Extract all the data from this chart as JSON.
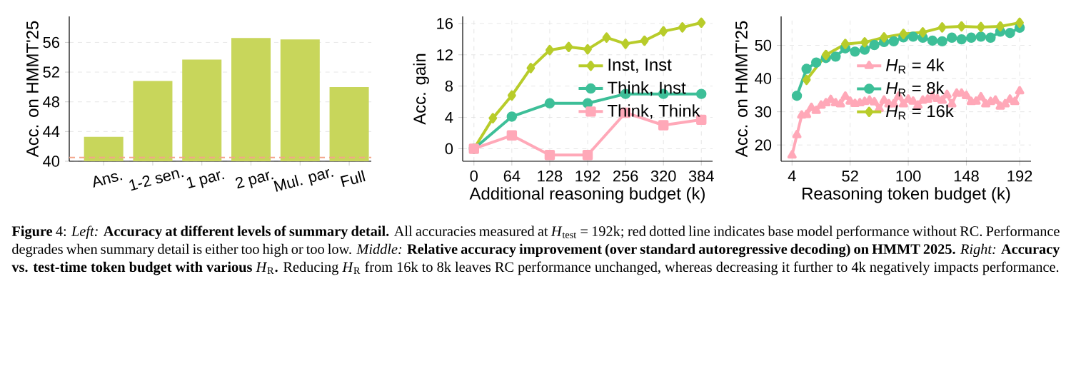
{
  "chart_data": [
    {
      "type": "bar",
      "ylabel": "Acc. on HMMT'25",
      "categories": [
        "Ans.",
        "1-2 sen.",
        "1 par.",
        "2 par.",
        "Mul. par.",
        "Full"
      ],
      "values": [
        43.3,
        50.8,
        53.7,
        56.6,
        56.4,
        50.0
      ],
      "color": "#c8d65b",
      "ylim": [
        40,
        59.5
      ],
      "yticks": [
        40,
        44,
        48,
        52,
        56
      ],
      "grid": "y",
      "ref_lines": [
        {
          "axis": "y",
          "value": 40.5,
          "color": "#f4a58a",
          "line_style": "dashed"
        }
      ],
      "annotations": [
        "**Figure** 4: *Left:* **Accuracy at different levels of summary detail.** All accuracies measured at *H*$_{test}$ = 192k; red dotted line indicates base model performance without RC. Performance degrades when summary detail is either too high or too low. *Middle:* **Relative accuracy improvement (over standard autoregressive decoding) on HMMT 2025.** *Right:* **Accuracy vs. test-time token budget with various** *H*$_{R}$**.** Reducing *H*$_{R}$ from 16k to 8k leaves RC performance unchanged, whereas decreasing it further to 4k negatively impacts performance."
      ]
    },
    {
      "type": "line",
      "xlabel": "Additional reasoning budget (k)",
      "ylabel": "Acc. gain",
      "xlim": [
        -19,
        403
      ],
      "xticks": [
        0,
        64,
        128,
        192,
        256,
        320,
        384
      ],
      "ylim": [
        -1.6,
        16.9
      ],
      "yticks": [
        0,
        4,
        8,
        12,
        16
      ],
      "grid": true,
      "legend": "center right",
      "series": [
        {
          "name": "Inst, Inst",
          "color": "#b8cc2a",
          "marker": "diamond",
          "x": [
            0,
            32,
            64,
            96,
            128,
            160,
            192,
            224,
            256,
            288,
            320,
            352,
            384
          ],
          "values": [
            0,
            3.9,
            6.8,
            10.3,
            12.6,
            13.0,
            12.7,
            14.2,
            13.4,
            13.8,
            15.0,
            15.5,
            16.1
          ]
        },
        {
          "name": "Think, Inst",
          "color": "#3dbf98",
          "marker": "circle",
          "x": [
            0,
            64,
            128,
            192,
            256,
            320,
            384
          ],
          "values": [
            0,
            4.1,
            5.8,
            5.8,
            7.0,
            7.0,
            7.0
          ]
        },
        {
          "name": "Think, Think",
          "color": "#ffa8b8",
          "marker": "square",
          "x": [
            0,
            64,
            128,
            192,
            256,
            320,
            384
          ],
          "values": [
            0,
            1.7,
            -0.8,
            -0.8,
            4.6,
            3.0,
            3.7
          ]
        }
      ]
    },
    {
      "type": "line",
      "xlabel": "Reasoning token budget (k)",
      "ylabel": "Acc. on HMMT'25",
      "xlim": [
        -5,
        201.4
      ],
      "xticks": [
        4,
        52,
        100,
        148,
        192
      ],
      "ylim": [
        15.1,
        58.7
      ],
      "yticks": [
        20,
        30,
        40,
        50
      ],
      "grid": true,
      "legend": "center",
      "series": [
        {
          "name": "*H*$_{R}$ = 4k",
          "color": "#ffa8b8",
          "marker": "triangle",
          "x": [
            4,
            8,
            12,
            16,
            20,
            24,
            28,
            32,
            36,
            40,
            44,
            48,
            52,
            56,
            60,
            64,
            68,
            72,
            76,
            80,
            84,
            88,
            92,
            96,
            100,
            104,
            108,
            112,
            116,
            120,
            124,
            128,
            132,
            136,
            140,
            144,
            148,
            152,
            156,
            160,
            164,
            168,
            172,
            176,
            180,
            184,
            188,
            192
          ],
          "values": [
            16.9,
            23.0,
            28.9,
            29.1,
            31.2,
            30.3,
            31.9,
            32.6,
            33.6,
            32.6,
            32.3,
            34.6,
            33.1,
            32.4,
            32.6,
            33.0,
            33.4,
            32.9,
            30.9,
            33.4,
            32.3,
            32.3,
            34.6,
            32.3,
            33.7,
            33.1,
            31.9,
            33.4,
            33.7,
            34.6,
            33.9,
            33.4,
            35.1,
            32.3,
            35.5,
            35.5,
            34.8,
            33.0,
            33.1,
            34.4,
            32.3,
            33.0,
            33.4,
            31.6,
            32.3,
            33.7,
            33.0,
            36.2
          ]
        },
        {
          "name": "*H*$_{R}$ = 8k",
          "color": "#3dbf98",
          "marker": "circle",
          "x": [
            8,
            16,
            24,
            32,
            40,
            48,
            56,
            64,
            72,
            80,
            88,
            96,
            104,
            112,
            120,
            128,
            136,
            144,
            152,
            160,
            168,
            176,
            184,
            192
          ],
          "values": [
            34.8,
            42.9,
            44.8,
            46.2,
            46.6,
            49.1,
            48.1,
            48.7,
            50.1,
            51.0,
            51.2,
            52.4,
            52.6,
            52.3,
            51.4,
            51.2,
            52.3,
            51.8,
            52.3,
            52.6,
            52.3,
            54.1,
            53.7,
            55.3
          ]
        },
        {
          "name": "*H*$_{R}$ = 16k",
          "color": "#b8cc2a",
          "marker": "diamond",
          "x": [
            16,
            32,
            48,
            64,
            80,
            96,
            112,
            128,
            144,
            160,
            176,
            192
          ],
          "values": [
            39.6,
            47.1,
            50.4,
            50.9,
            52.4,
            53.4,
            53.9,
            55.4,
            55.7,
            55.5,
            55.7,
            56.8
          ]
        }
      ]
    }
  ]
}
